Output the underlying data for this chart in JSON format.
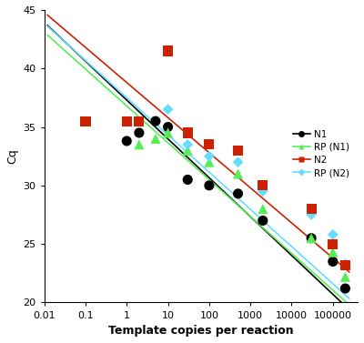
{
  "xlabel": "Template copies per reaction",
  "ylabel": "Cq",
  "ylim": [
    20,
    45
  ],
  "yticks": [
    20,
    25,
    30,
    35,
    40,
    45
  ],
  "xlim": [
    0.01,
    400000
  ],
  "N1": {
    "color": "#000000",
    "marker": "o",
    "markersize": 4,
    "label": "N1",
    "scatter_x": [
      1,
      2,
      5,
      10,
      30,
      100,
      500,
      2000,
      30000,
      100000,
      200000
    ],
    "scatter_y": [
      33.8,
      34.5,
      35.5,
      35.0,
      30.5,
      30.0,
      29.3,
      27.0,
      25.5,
      23.5,
      21.2
    ],
    "line_slope": -3.32,
    "line_intercept": 37.3
  },
  "RP_N1": {
    "color": "#55ee55",
    "marker": "^",
    "markersize": 4,
    "label": "RP (N1)",
    "scatter_x": [
      2,
      5,
      10,
      30,
      100,
      500,
      2000,
      30000,
      100000,
      200000
    ],
    "scatter_y": [
      33.5,
      34.0,
      34.5,
      33.0,
      32.0,
      31.0,
      28.0,
      25.5,
      24.3,
      22.2
    ],
    "line_slope": -3.15,
    "line_intercept": 36.8
  },
  "N2": {
    "color": "#cc2200",
    "marker": "s",
    "markersize": 4,
    "label": "N2",
    "scatter_x": [
      0.1,
      1,
      2,
      10,
      30,
      100,
      500,
      2000,
      30000,
      100000,
      200000
    ],
    "scatter_y": [
      35.5,
      35.5,
      35.5,
      41.5,
      34.5,
      33.5,
      33.0,
      30.0,
      28.0,
      25.0,
      23.2
    ],
    "line_slope": -3.0,
    "line_intercept": 38.8
  },
  "RP_N2": {
    "color": "#66ddff",
    "marker": "D",
    "markersize": 3,
    "label": "RP (N2)",
    "scatter_x": [
      10,
      30,
      100,
      500,
      2000,
      30000,
      100000,
      200000
    ],
    "scatter_y": [
      36.5,
      33.5,
      32.5,
      32.0,
      29.5,
      27.5,
      25.8,
      23.3
    ],
    "line_slope": -3.18,
    "line_intercept": 37.5
  },
  "background_color": "#ffffff",
  "linewidth": 1.2,
  "line_x_start": 0.012,
  "line_x_end": 250000
}
